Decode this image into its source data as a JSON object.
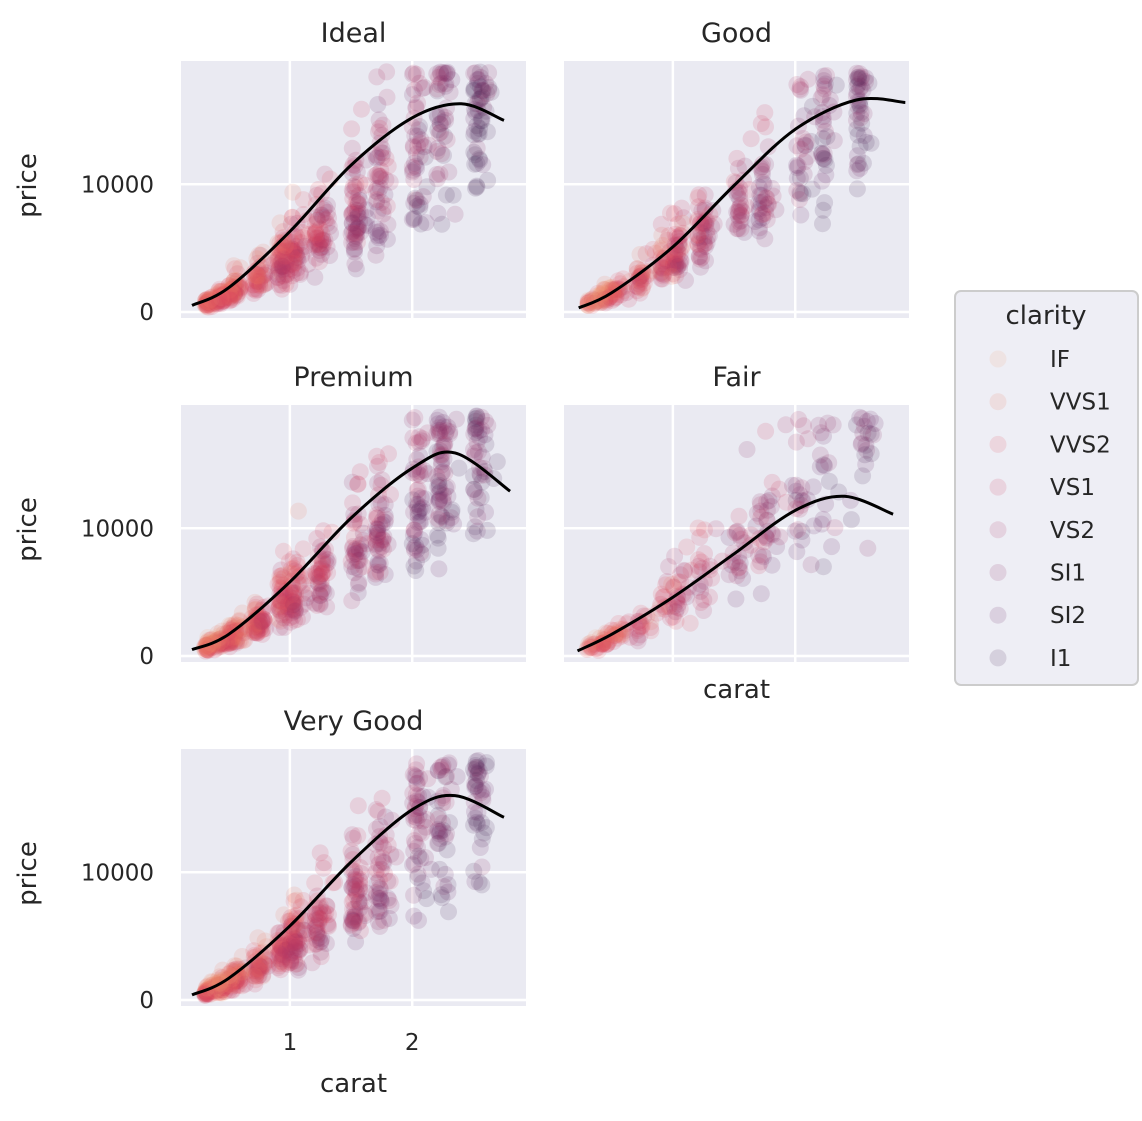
{
  "chart_data": {
    "type": "scatter",
    "title": "",
    "xlabel": "carat",
    "ylabel": "price",
    "xlim": [
      0.11,
      2.93
    ],
    "ylim": [
      -470,
      19650
    ],
    "xticks": [
      1,
      2
    ],
    "yticks": [
      0,
      10000
    ],
    "grid": true,
    "facet_by": "cut",
    "legend": {
      "title": "clarity",
      "placement": "right",
      "entries": [
        "IF",
        "VVS1",
        "VVS2",
        "VS1",
        "VS2",
        "SI1",
        "SI2",
        "I1"
      ],
      "colors": [
        "#f4a57e",
        "#ee7d62",
        "#e5535c",
        "#cf3f5f",
        "#ae3464",
        "#8d2d67",
        "#6a2a64",
        "#4a2556"
      ]
    },
    "point_alpha": 0.15,
    "trend_line": {
      "type": "polynomial fit",
      "color": "#000000"
    },
    "panels": [
      {
        "name": "Ideal",
        "show_xlabel": false,
        "show_ylabel": true,
        "show_xticks": false,
        "x_max": 2.75,
        "trend": [
          [
            0.2,
            520
          ],
          [
            0.5,
            1900
          ],
          [
            1.0,
            6300
          ],
          [
            1.5,
            11500
          ],
          [
            2.0,
            15200
          ],
          [
            2.4,
            16300
          ],
          [
            2.75,
            15000
          ]
        ]
      },
      {
        "name": "Good",
        "show_xlabel": false,
        "show_ylabel": false,
        "show_xticks": false,
        "x_max": 2.9,
        "trend": [
          [
            0.23,
            320
          ],
          [
            0.5,
            1500
          ],
          [
            1.0,
            5100
          ],
          [
            1.5,
            9900
          ],
          [
            2.0,
            14300
          ],
          [
            2.5,
            16600
          ],
          [
            2.9,
            16400
          ]
        ]
      },
      {
        "name": "Premium",
        "show_xlabel": false,
        "show_ylabel": true,
        "show_xticks": false,
        "x_max": 2.8,
        "trend": [
          [
            0.2,
            500
          ],
          [
            0.5,
            1700
          ],
          [
            1.0,
            5800
          ],
          [
            1.5,
            10800
          ],
          [
            2.0,
            14700
          ],
          [
            2.35,
            15900
          ],
          [
            2.8,
            12900
          ]
        ]
      },
      {
        "name": "Fair",
        "show_xlabel": true,
        "show_ylabel": false,
        "show_xticks": false,
        "x_max": 2.8,
        "trend": [
          [
            0.22,
            400
          ],
          [
            0.5,
            1700
          ],
          [
            1.0,
            4600
          ],
          [
            1.5,
            8000
          ],
          [
            2.0,
            11400
          ],
          [
            2.4,
            12500
          ],
          [
            2.8,
            11100
          ]
        ]
      },
      {
        "name": "Very Good",
        "show_xlabel": true,
        "show_ylabel": true,
        "show_xticks": true,
        "x_max": 2.75,
        "trend": [
          [
            0.2,
            400
          ],
          [
            0.5,
            1700
          ],
          [
            1.0,
            5800
          ],
          [
            1.5,
            10800
          ],
          [
            2.0,
            14900
          ],
          [
            2.35,
            16000
          ],
          [
            2.75,
            14300
          ]
        ]
      }
    ]
  }
}
